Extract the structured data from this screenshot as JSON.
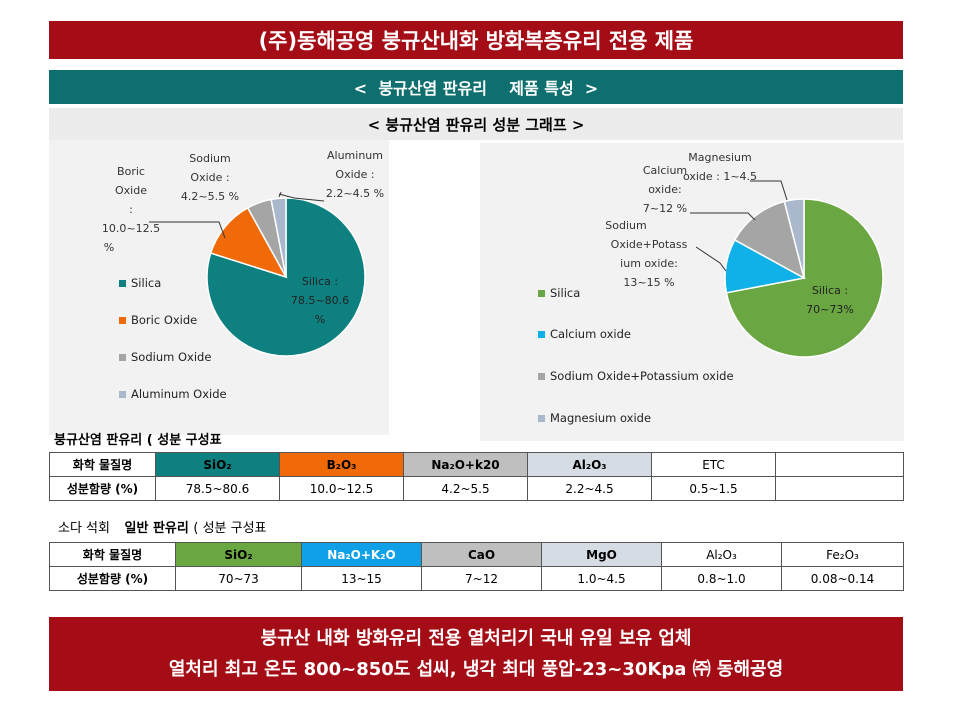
{
  "header": {
    "title": "(주)동해공영 붕규산내화 방화복층유리 전용 제품"
  },
  "subheader": {
    "title": "<  붕규산염 판유리    제품 특성  >"
  },
  "graph_section": {
    "title": "< 붕규산염 판유리 성분 그래프 >"
  },
  "chart_data": [
    {
      "type": "pie",
      "slices": [
        {
          "name": "Silica",
          "value": 79.5,
          "label": [
            "Silica :",
            "78.5~80.6",
            "%"
          ],
          "color": "#0f8080"
        },
        {
          "name": "Boric Oxide",
          "value": 12.0,
          "label": [
            "Boric",
            "Oxide :",
            "10.0~12.5",
            "%"
          ],
          "color": "#f16a0a"
        },
        {
          "name": "Sodium Oxide",
          "value": 5.0,
          "label": [
            "Sodium",
            "Oxide :",
            "4.2~5.5 %"
          ],
          "color": "#a5a5a5"
        },
        {
          "name": "Aluminum Oxide",
          "value": 3.0,
          "label": [
            "Aluminum",
            "Oxide :",
            "2.2~4.5 %"
          ],
          "color": "#a9b8cc"
        }
      ],
      "legend": [
        "Silica",
        "Boric Oxide",
        "Sodium Oxide",
        "Aluminum Oxide"
      ]
    },
    {
      "type": "pie",
      "slices": [
        {
          "name": "Silica",
          "value": 72,
          "label": [
            "Silica :",
            "70~73%"
          ],
          "color": "#6aa641"
        },
        {
          "name": "Calcium oxide",
          "value": 11,
          "label": [
            "Calcium",
            "oxide:",
            "7~12 %"
          ],
          "color": "#10b0e8"
        },
        {
          "name": "Sodium Oxide+Potassium oxide",
          "value": 13,
          "label": [
            "Sodium",
            "Oxide+Potass",
            "ium oxide:",
            "13~15 %"
          ],
          "color": "#a5a5a5"
        },
        {
          "name": "Magnesium oxide",
          "value": 4,
          "label": [
            "Magnesium",
            "oxide : 1~4.5"
          ],
          "color": "#a9b8cc"
        }
      ],
      "legend": [
        "Silica",
        "Calcium oxide",
        "Sodium Oxide+Potassium oxide",
        "Magnesium oxide"
      ]
    }
  ],
  "table1": {
    "caption": "붕규산염 판유리 ( 성분 구성표",
    "row1": [
      "화학 물질명",
      "SiO₂",
      "B₂O₃",
      "Na₂O+k20",
      "Al₂O₃",
      "ETC",
      ""
    ],
    "row2": [
      "성분함량 (%)",
      "78.5~80.6",
      "10.0~12.5",
      "4.2~5.5",
      "2.2~4.5",
      "0.5~1.5",
      ""
    ],
    "colors": [
      "#ffffff",
      "#0f8080",
      "#f16a0a",
      "#bfbfbf",
      "#d6dce4",
      "#ffffff",
      "#ffffff"
    ]
  },
  "table2": {
    "caption_prefix": "소다 석회",
    "caption_bold": "일반 판유리",
    "caption_suffix": "( 성분 구성표",
    "row1": [
      "화학 물질명",
      "SiO₂",
      "Na₂O+K₂O",
      "CaO",
      "MgO",
      "Al₂O₃",
      "Fe₂O₃"
    ],
    "row2": [
      "성분함량 (%)",
      "70~73",
      "13~15",
      "7~12",
      "1.0~4.5",
      "0.8~1.0",
      "0.08~0.14"
    ],
    "colors": [
      "#ffffff",
      "#6aa641",
      "#10a0e8",
      "#bfbfbf",
      "#d6dce4",
      "#ffffff",
      "#ffffff"
    ]
  },
  "footer": {
    "line1": "붕규산 내화 방화유리 전용 열처리기 국내 유일 보유 업체",
    "line2": "열처리 최고 온도 800~850도 섭씨, 냉각 최대 풍압-23~30Kpa ㈜ 동해공영"
  }
}
